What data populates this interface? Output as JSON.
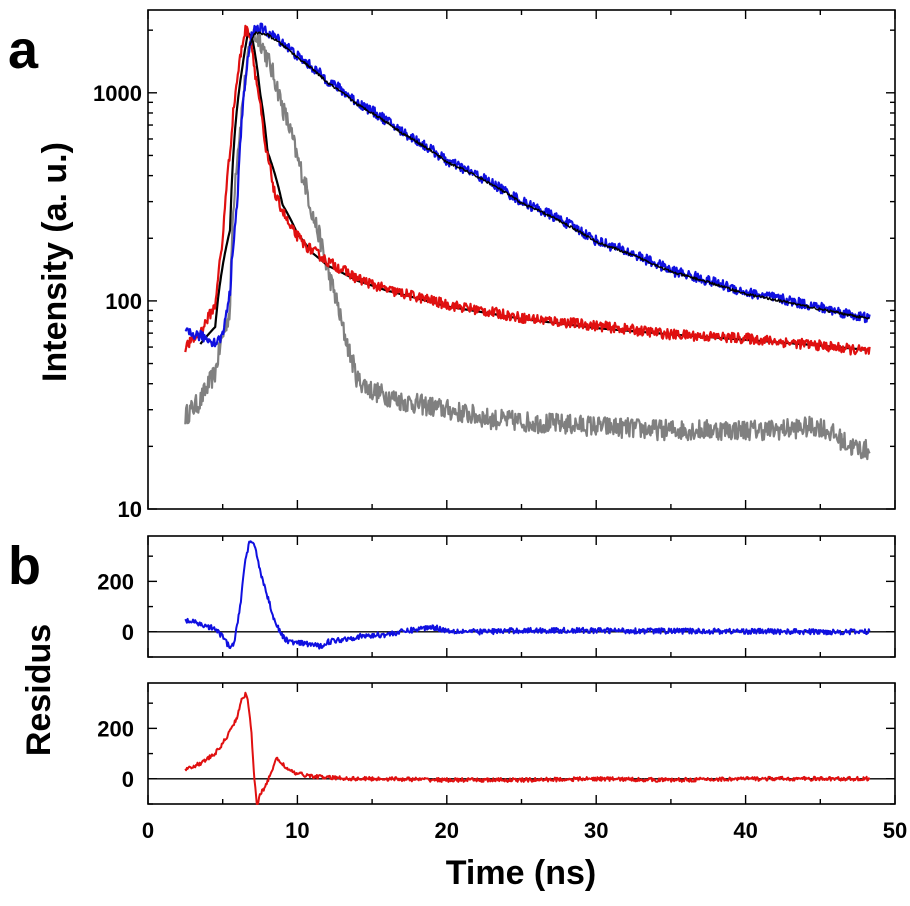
{
  "panels": {
    "a": {
      "label": "a"
    },
    "b": {
      "label": "b"
    }
  },
  "chart_data": [
    {
      "type": "line",
      "panel": "a",
      "ylabel": "Intensity (a. u.)",
      "xlabel": "",
      "xlim": [
        0,
        50
      ],
      "ylim": [
        10,
        2500
      ],
      "yscale": "log",
      "ytick_labels": [
        "10",
        "100",
        "1000"
      ],
      "xtick_labels": [],
      "grid": false,
      "series": [
        {
          "color": "#808080",
          "x": [
            2.5,
            3.5,
            4.5,
            5.5,
            6.2,
            7.0,
            7.5,
            8.0,
            9.0,
            10.0,
            11.0,
            12.0,
            13.0,
            13.5,
            14.0,
            15.0,
            17.0,
            20.0,
            23.0,
            26.0,
            30.0,
            34.0,
            38.0,
            42.0,
            45.0,
            47.0,
            48.3
          ],
          "y": [
            28,
            33,
            45,
            90,
            700,
            1900,
            1800,
            1450,
            850,
            480,
            260,
            140,
            75,
            56,
            42,
            37,
            33,
            30,
            27,
            26,
            25,
            24,
            24,
            24,
            25,
            20,
            19
          ]
        },
        {
          "color": "#000000",
          "x": [
            3.5,
            4.5,
            5.5,
            6.3,
            6.7,
            7.0,
            7.5,
            8.0,
            9.0,
            10.0,
            11.0,
            12.0,
            14.0,
            16.0,
            20.0,
            25.0,
            30.0,
            35.0,
            40.0,
            45.0,
            48.3
          ],
          "y": [
            62,
            75,
            220,
            1300,
            1950,
            1800,
            1000,
            520,
            290,
            210,
            170,
            148,
            125,
            112,
            94,
            82,
            74,
            69,
            65,
            61,
            58
          ]
        },
        {
          "color": "#e01010",
          "x": [
            2.5,
            3.5,
            4.5,
            5.0,
            5.5,
            6.0,
            6.5,
            6.8,
            7.2,
            7.8,
            8.5,
            9.5,
            10.5,
            12.0,
            14.0,
            16.0,
            20.0,
            25.0,
            30.0,
            35.0,
            40.0,
            45.0,
            48.3
          ],
          "y": [
            60,
            70,
            95,
            190,
            520,
            1200,
            2000,
            1950,
            1200,
            560,
            320,
            225,
            185,
            155,
            128,
            113,
            96,
            83,
            76,
            69,
            66,
            61,
            57
          ]
        },
        {
          "color": "#1010e0",
          "x": [
            2.5,
            3.5,
            4.5,
            5.0,
            5.5,
            6.0,
            6.5,
            7.0,
            7.5,
            8.0,
            9.0,
            10.0,
            12.0,
            14.0,
            17.0,
            20.0,
            25.0,
            30.0,
            35.0,
            40.0,
            45.0,
            48.3
          ],
          "y": [
            70,
            68,
            63,
            68,
            110,
            300,
            1100,
            2000,
            2050,
            1950,
            1750,
            1500,
            1150,
            900,
            650,
            470,
            300,
            195,
            140,
            110,
            93,
            82
          ]
        },
        {
          "color": "#000000",
          "x": [
            6.8,
            7.2,
            8.0,
            9.0,
            10.0,
            12.0,
            14.0,
            17.0,
            20.0,
            25.0,
            30.0,
            35.0,
            40.0,
            45.0,
            48.3
          ],
          "y": [
            1700,
            1950,
            1900,
            1700,
            1480,
            1120,
            880,
            640,
            465,
            295,
            192,
            138,
            108,
            91,
            82
          ]
        }
      ]
    },
    {
      "type": "line",
      "panel": "b-top",
      "ylabel": "Residus",
      "xlim": [
        0,
        50
      ],
      "ylim": [
        -100,
        380
      ],
      "ytick_labels": [
        "0",
        "200"
      ],
      "zero_line": true,
      "series": [
        {
          "color": "#1010e0",
          "x": [
            2.5,
            3.5,
            4.5,
            5.0,
            5.5,
            5.8,
            6.2,
            6.5,
            6.8,
            7.2,
            7.6,
            8.0,
            8.5,
            9.0,
            9.5,
            10.0,
            11.0,
            11.5,
            12.0,
            13.0,
            14.0,
            16.0,
            18.0,
            19.0,
            20.0,
            22.0,
            25.0,
            30.0,
            35.0,
            40.0,
            45.0,
            48.3
          ],
          "y": [
            45,
            30,
            10,
            -20,
            -65,
            -40,
            120,
            280,
            360,
            330,
            220,
            140,
            40,
            -20,
            -40,
            -45,
            -50,
            -60,
            -40,
            -30,
            -20,
            -10,
            10,
            20,
            5,
            0,
            5,
            5,
            3,
            2,
            0,
            0
          ]
        }
      ]
    },
    {
      "type": "line",
      "panel": "b-bottom",
      "ylabel": "",
      "xlabel": "Time (ns)",
      "xlim": [
        0,
        50
      ],
      "ylim": [
        -100,
        380
      ],
      "ytick_labels": [
        "0",
        "200"
      ],
      "xtick_labels": [
        "0",
        "10",
        "20",
        "30",
        "40",
        "50"
      ],
      "zero_line": true,
      "series": [
        {
          "color": "#e01010",
          "x": [
            2.5,
            3.5,
            4.5,
            5.0,
            5.5,
            6.0,
            6.3,
            6.6,
            6.9,
            7.1,
            7.3,
            7.5,
            7.8,
            8.2,
            8.6,
            9.0,
            9.5,
            10.0,
            11.0,
            12.0,
            14.0,
            16.0,
            20.0,
            25.0,
            30.0,
            35.0,
            40.0,
            45.0,
            48.3
          ],
          "y": [
            40,
            60,
            100,
            140,
            190,
            250,
            320,
            340,
            200,
            20,
            -110,
            -60,
            -40,
            20,
            80,
            60,
            30,
            20,
            10,
            5,
            0,
            0,
            -5,
            -5,
            0,
            -5,
            0,
            0,
            0
          ]
        }
      ]
    }
  ]
}
